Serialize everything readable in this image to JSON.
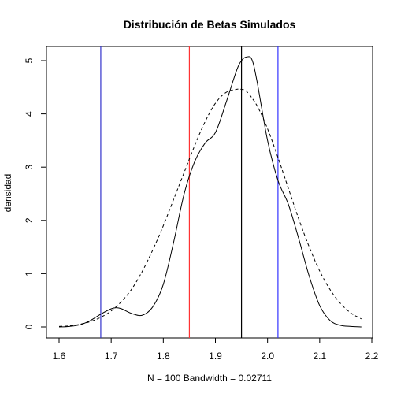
{
  "chart_data": {
    "type": "line",
    "title": "Distribución de Betas Simulados",
    "xlabel": "N = 100   Bandwidth = 0.02711",
    "ylabel": "densidad",
    "xlim": [
      1.6,
      2.2
    ],
    "ylim": [
      0,
      5
    ],
    "x_ticks": [
      "1.6",
      "1.7",
      "1.8",
      "1.9",
      "2.0",
      "2.1",
      "2.2"
    ],
    "y_ticks": [
      "0",
      "1",
      "2",
      "3",
      "4",
      "5"
    ],
    "grid": false,
    "series": [
      {
        "style": "solid",
        "color": "#000000",
        "x": [
          1.6,
          1.62,
          1.64,
          1.66,
          1.68,
          1.7,
          1.71,
          1.72,
          1.74,
          1.76,
          1.78,
          1.8,
          1.82,
          1.84,
          1.86,
          1.88,
          1.9,
          1.92,
          1.94,
          1.95,
          1.96,
          1.97,
          1.98,
          2.0,
          2.02,
          2.04,
          2.06,
          2.08,
          2.1,
          2.12,
          2.14,
          2.16,
          2.18
        ],
        "y": [
          0.0,
          0.01,
          0.04,
          0.12,
          0.24,
          0.34,
          0.36,
          0.34,
          0.25,
          0.22,
          0.38,
          0.8,
          1.6,
          2.5,
          3.1,
          3.45,
          3.65,
          4.2,
          4.8,
          5.0,
          5.07,
          5.02,
          4.6,
          3.5,
          2.75,
          2.3,
          1.65,
          0.95,
          0.4,
          0.12,
          0.03,
          0.01,
          0.0
        ]
      },
      {
        "style": "dashed",
        "color": "#000000",
        "x": [
          1.6,
          1.62,
          1.64,
          1.66,
          1.68,
          1.7,
          1.72,
          1.74,
          1.76,
          1.78,
          1.8,
          1.82,
          1.84,
          1.86,
          1.88,
          1.9,
          1.92,
          1.94,
          1.95,
          1.96,
          1.98,
          2.0,
          2.02,
          2.04,
          2.06,
          2.08,
          2.1,
          2.12,
          2.14,
          2.16,
          2.18
        ],
        "y": [
          0.01,
          0.02,
          0.05,
          0.1,
          0.18,
          0.3,
          0.48,
          0.72,
          1.05,
          1.45,
          1.9,
          2.4,
          2.9,
          3.4,
          3.85,
          4.2,
          4.4,
          4.46,
          4.46,
          4.42,
          4.15,
          3.72,
          3.18,
          2.6,
          2.02,
          1.5,
          1.05,
          0.7,
          0.44,
          0.26,
          0.15
        ]
      }
    ],
    "vlines": [
      {
        "x": 1.68,
        "color": "#3333cc"
      },
      {
        "x": 1.85,
        "color": "#ff3333"
      },
      {
        "x": 1.95,
        "color": "#000000"
      },
      {
        "x": 2.02,
        "color": "#3333ff"
      }
    ]
  }
}
